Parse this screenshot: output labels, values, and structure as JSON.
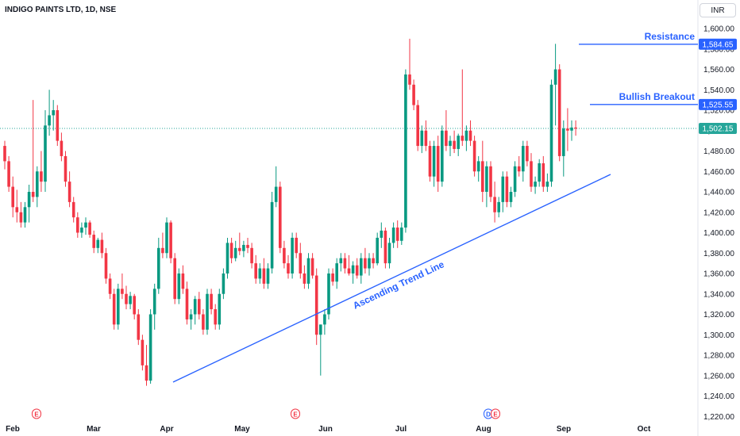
{
  "title": "INDIGO PAINTS LTD, 1D, NSE",
  "currency": "INR",
  "colors": {
    "up": "#089981",
    "down": "#f23645",
    "annotation": "#2962ff",
    "current": "#26a69a"
  },
  "chart_data": {
    "type": "candlestick",
    "title": "INDIGO PAINTS LTD, 1D, NSE",
    "ylim": [
      1215,
      1625
    ],
    "y_ticks": [
      "1,600.00",
      "1,580.00",
      "1,560.00",
      "1,540.00",
      "1,520.00",
      "1,500.00",
      "1,480.00",
      "1,460.00",
      "1,440.00",
      "1,420.00",
      "1,400.00",
      "1,380.00",
      "1,360.00",
      "1,340.00",
      "1,320.00",
      "1,300.00",
      "1,280.00",
      "1,260.00",
      "1,240.00",
      "1,220.00"
    ],
    "x_ticks": [
      "Feb",
      "Mar",
      "Apr",
      "May",
      "Jun",
      "Jul",
      "Aug",
      "Sep",
      "Oct"
    ],
    "events": [
      "E",
      "E",
      "D",
      "E"
    ],
    "candles": [
      [
        1485,
        1490,
        1462,
        1470
      ],
      [
        1470,
        1475,
        1440,
        1445
      ],
      [
        1445,
        1455,
        1415,
        1425
      ],
      [
        1425,
        1442,
        1410,
        1420
      ],
      [
        1420,
        1430,
        1405,
        1410
      ],
      [
        1410,
        1430,
        1405,
        1425
      ],
      [
        1425,
        1447,
        1410,
        1440
      ],
      [
        1440,
        1530,
        1430,
        1435
      ],
      [
        1435,
        1465,
        1425,
        1460
      ],
      [
        1460,
        1480,
        1440,
        1450
      ],
      [
        1450,
        1520,
        1440,
        1505
      ],
      [
        1505,
        1540,
        1495,
        1515
      ],
      [
        1515,
        1530,
        1500,
        1520
      ],
      [
        1520,
        1525,
        1485,
        1490
      ],
      [
        1490,
        1498,
        1470,
        1475
      ],
      [
        1475,
        1480,
        1445,
        1450
      ],
      [
        1450,
        1460,
        1425,
        1430
      ],
      [
        1430,
        1435,
        1410,
        1415
      ],
      [
        1415,
        1420,
        1395,
        1400
      ],
      [
        1400,
        1410,
        1395,
        1405
      ],
      [
        1405,
        1415,
        1398,
        1410
      ],
      [
        1410,
        1412,
        1395,
        1398
      ],
      [
        1398,
        1402,
        1380,
        1385
      ],
      [
        1385,
        1395,
        1380,
        1393
      ],
      [
        1393,
        1400,
        1375,
        1380
      ],
      [
        1380,
        1385,
        1350,
        1355
      ],
      [
        1355,
        1360,
        1335,
        1340
      ],
      [
        1340,
        1345,
        1305,
        1310
      ],
      [
        1310,
        1350,
        1305,
        1345
      ],
      [
        1345,
        1360,
        1335,
        1340
      ],
      [
        1340,
        1348,
        1325,
        1330
      ],
      [
        1330,
        1342,
        1325,
        1338
      ],
      [
        1338,
        1340,
        1315,
        1320
      ],
      [
        1320,
        1325,
        1290,
        1295
      ],
      [
        1295,
        1300,
        1265,
        1270
      ],
      [
        1270,
        1290,
        1250,
        1255
      ],
      [
        1255,
        1325,
        1252,
        1320
      ],
      [
        1320,
        1350,
        1305,
        1345
      ],
      [
        1345,
        1395,
        1340,
        1385
      ],
      [
        1385,
        1400,
        1375,
        1380
      ],
      [
        1380,
        1415,
        1375,
        1410
      ],
      [
        1410,
        1412,
        1370,
        1375
      ],
      [
        1375,
        1380,
        1330,
        1335
      ],
      [
        1335,
        1365,
        1330,
        1360
      ],
      [
        1360,
        1368,
        1340,
        1345
      ],
      [
        1345,
        1352,
        1310,
        1315
      ],
      [
        1315,
        1325,
        1305,
        1320
      ],
      [
        1320,
        1338,
        1310,
        1335
      ],
      [
        1335,
        1342,
        1315,
        1320
      ],
      [
        1320,
        1325,
        1300,
        1305
      ],
      [
        1305,
        1345,
        1300,
        1340
      ],
      [
        1340,
        1345,
        1320,
        1325
      ],
      [
        1325,
        1330,
        1305,
        1310
      ],
      [
        1310,
        1345,
        1305,
        1340
      ],
      [
        1340,
        1365,
        1335,
        1360
      ],
      [
        1360,
        1395,
        1355,
        1390
      ],
      [
        1390,
        1395,
        1370,
        1375
      ],
      [
        1375,
        1392,
        1372,
        1385
      ],
      [
        1385,
        1400,
        1378,
        1382
      ],
      [
        1382,
        1392,
        1376,
        1388
      ],
      [
        1388,
        1395,
        1380,
        1385
      ],
      [
        1385,
        1390,
        1365,
        1370
      ],
      [
        1370,
        1378,
        1350,
        1355
      ],
      [
        1355,
        1370,
        1350,
        1365
      ],
      [
        1365,
        1375,
        1345,
        1350
      ],
      [
        1350,
        1370,
        1345,
        1365
      ],
      [
        1365,
        1440,
        1360,
        1430
      ],
      [
        1430,
        1465,
        1425,
        1445
      ],
      [
        1445,
        1450,
        1380,
        1385
      ],
      [
        1385,
        1392,
        1365,
        1370
      ],
      [
        1370,
        1378,
        1355,
        1360
      ],
      [
        1360,
        1400,
        1355,
        1395
      ],
      [
        1395,
        1400,
        1375,
        1380
      ],
      [
        1380,
        1390,
        1355,
        1360
      ],
      [
        1360,
        1368,
        1345,
        1350
      ],
      [
        1350,
        1380,
        1345,
        1375
      ],
      [
        1375,
        1380,
        1355,
        1358
      ],
      [
        1358,
        1365,
        1290,
        1300
      ],
      [
        1300,
        1310,
        1260,
        1310
      ],
      [
        1310,
        1325,
        1300,
        1320
      ],
      [
        1320,
        1365,
        1315,
        1360
      ],
      [
        1360,
        1365,
        1348,
        1352
      ],
      [
        1352,
        1375,
        1345,
        1370
      ],
      [
        1370,
        1380,
        1362,
        1375
      ],
      [
        1375,
        1380,
        1360,
        1365
      ],
      [
        1365,
        1378,
        1358,
        1360
      ],
      [
        1360,
        1372,
        1350,
        1368
      ],
      [
        1368,
        1375,
        1355,
        1358
      ],
      [
        1358,
        1380,
        1350,
        1375
      ],
      [
        1375,
        1385,
        1360,
        1365
      ],
      [
        1365,
        1380,
        1358,
        1375
      ],
      [
        1375,
        1380,
        1365,
        1370
      ],
      [
        1370,
        1400,
        1368,
        1395
      ],
      [
        1395,
        1410,
        1385,
        1402
      ],
      [
        1402,
        1405,
        1365,
        1370
      ],
      [
        1370,
        1395,
        1365,
        1390
      ],
      [
        1390,
        1410,
        1385,
        1405
      ],
      [
        1405,
        1412,
        1385,
        1392
      ],
      [
        1392,
        1410,
        1388,
        1405
      ],
      [
        1405,
        1560,
        1400,
        1555
      ],
      [
        1555,
        1590,
        1540,
        1545
      ],
      [
        1545,
        1550,
        1520,
        1525
      ],
      [
        1525,
        1530,
        1480,
        1485
      ],
      [
        1485,
        1505,
        1478,
        1500
      ],
      [
        1500,
        1510,
        1480,
        1485
      ],
      [
        1485,
        1490,
        1450,
        1455
      ],
      [
        1455,
        1490,
        1445,
        1485
      ],
      [
        1485,
        1495,
        1440,
        1450
      ],
      [
        1450,
        1505,
        1445,
        1500
      ],
      [
        1500,
        1520,
        1480,
        1485
      ],
      [
        1485,
        1495,
        1475,
        1490
      ],
      [
        1490,
        1500,
        1478,
        1482
      ],
      [
        1482,
        1497,
        1475,
        1495
      ],
      [
        1495,
        1560,
        1485,
        1490
      ],
      [
        1490,
        1505,
        1480,
        1500
      ],
      [
        1500,
        1510,
        1485,
        1490
      ],
      [
        1490,
        1495,
        1455,
        1460
      ],
      [
        1460,
        1475,
        1450,
        1470
      ],
      [
        1470,
        1490,
        1430,
        1440
      ],
      [
        1440,
        1470,
        1425,
        1465
      ],
      [
        1465,
        1470,
        1430,
        1435
      ],
      [
        1435,
        1450,
        1410,
        1420
      ],
      [
        1420,
        1435,
        1415,
        1430
      ],
      [
        1430,
        1460,
        1420,
        1455
      ],
      [
        1455,
        1460,
        1425,
        1430
      ],
      [
        1430,
        1445,
        1425,
        1440
      ],
      [
        1440,
        1470,
        1435,
        1465
      ],
      [
        1465,
        1475,
        1455,
        1460
      ],
      [
        1460,
        1490,
        1450,
        1485
      ],
      [
        1485,
        1490,
        1465,
        1470
      ],
      [
        1470,
        1478,
        1440,
        1445
      ],
      [
        1445,
        1455,
        1438,
        1450
      ],
      [
        1450,
        1472,
        1445,
        1468
      ],
      [
        1468,
        1475,
        1440,
        1445
      ],
      [
        1445,
        1458,
        1440,
        1450
      ],
      [
        1450,
        1550,
        1445,
        1545
      ],
      [
        1545,
        1585,
        1505,
        1560
      ],
      [
        1560,
        1565,
        1470,
        1475
      ],
      [
        1475,
        1510,
        1455,
        1502
      ],
      [
        1502,
        1522,
        1480,
        1500
      ],
      [
        1500,
        1510,
        1490,
        1503
      ],
      [
        1503,
        1510,
        1495,
        1502
      ]
    ],
    "annotations": [
      {
        "text": "Resistance",
        "price": 1584.65,
        "label": "1,584.65"
      },
      {
        "text": "Bullish Breakout",
        "price": 1525.55,
        "label": "1,525.55"
      },
      {
        "text": "Ascending Trend Line"
      }
    ],
    "current_price": 1502.15,
    "current_label": "1,502.15"
  }
}
